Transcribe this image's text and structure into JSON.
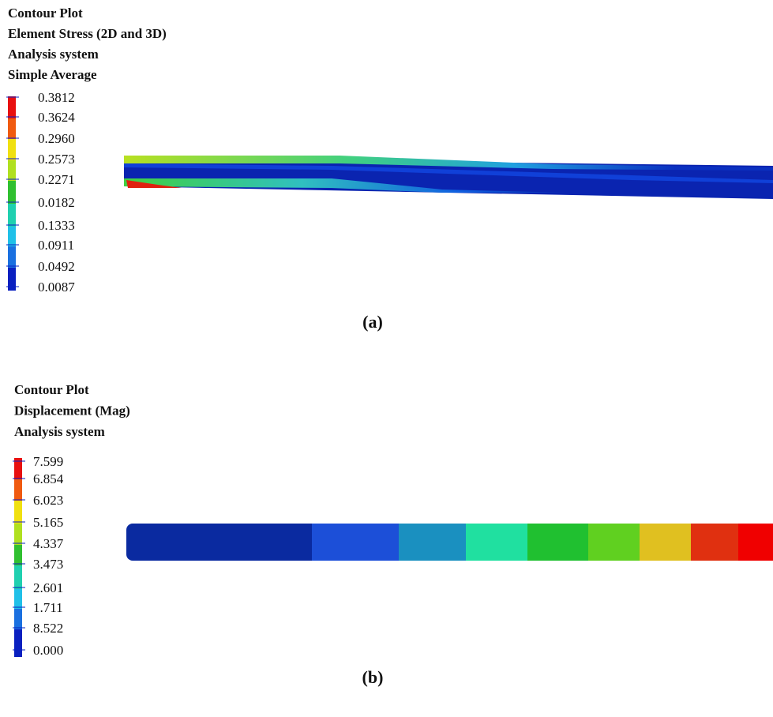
{
  "panels": [
    {
      "title_lines": [
        "Contour Plot",
        "Element Stress (2D and 3D)",
        "Analysis system",
        "Simple Average"
      ],
      "legend_labels": [
        "0.3812",
        "0.3624",
        "0.2960",
        "0.2573",
        "0.2271",
        "0.0182",
        "0.1333",
        "0.0911",
        "0.0492",
        "0.0087"
      ],
      "caption": "(a)"
    },
    {
      "title_lines": [
        "Contour Plot",
        "Displacement (Mag)",
        "Analysis system"
      ],
      "legend_labels": [
        "7.599",
        "6.854",
        "6.023",
        "5.165",
        "4.337",
        "3.473",
        "2.601",
        "1.711",
        "8.522",
        "0.000"
      ],
      "caption": "(b)"
    }
  ]
}
